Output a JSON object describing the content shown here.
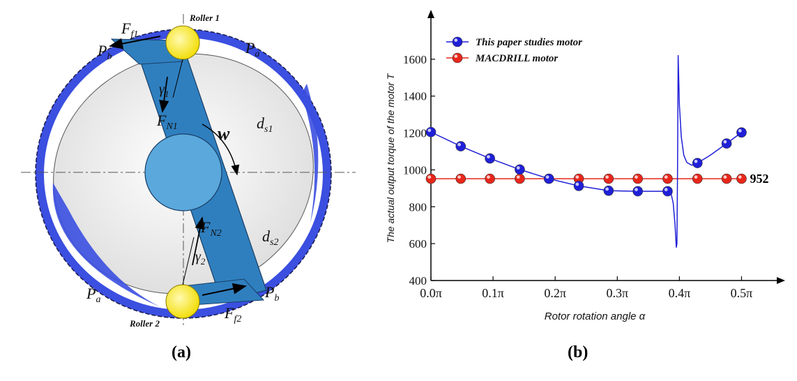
{
  "panel_a": {
    "caption": "(a)",
    "roller1_label": "Roller 1",
    "roller2_label": "Roller 2",
    "labels": {
      "Ff1": "F",
      "Ff1_sub": "f1",
      "Ff2": "F",
      "Ff2_sub": "f2",
      "FN1": "F",
      "FN1_sub": "N1",
      "FN2": "F",
      "FN2_sub": "N2",
      "gamma1": "γ",
      "gamma1_sub": "1",
      "gamma2": "γ",
      "gamma2_sub": "2",
      "w": "w",
      "ds1": "d",
      "ds1_sub": "s1",
      "ds2": "d",
      "ds2_sub": "s2",
      "Pa": "P",
      "Pa_sub": "a",
      "Pb": "P",
      "Pb_sub": "b"
    },
    "colors": {
      "blue_ring": "#3b4fe0",
      "vane_blue": "#2f7fbf",
      "hub_blue": "#5aa8dc",
      "roller_yellow": "#ffee1a",
      "chamber_gray": "#eeeeee"
    }
  },
  "panel_b": {
    "caption": "(b)"
  },
  "chart_data": {
    "type": "line",
    "title": "",
    "xlabel": "Rotor rotation angle α",
    "ylabel": "The actual output torque of the motor T",
    "xlim": [
      0,
      0.55
    ],
    "ylim": [
      400,
      1800
    ],
    "x_ticks": [
      0,
      0.1,
      0.2,
      0.3,
      0.4,
      0.5
    ],
    "x_tick_labels": [
      "0.0π",
      "0.1π",
      "0.2π",
      "0.3π",
      "0.4π",
      "0.5π"
    ],
    "y_ticks": [
      400,
      600,
      800,
      1000,
      1200,
      1400,
      1600
    ],
    "y_tick_labels": [
      "400",
      "600",
      "800",
      "1000",
      "1200",
      "1400",
      "1600"
    ],
    "legend_position": "top-left",
    "annotation": "952",
    "series": [
      {
        "name": "This paper studies motor",
        "color": "#1f1fd8",
        "marker_x": [
          0,
          0.048,
          0.095,
          0.143,
          0.19,
          0.238,
          0.286,
          0.333,
          0.381,
          0.429,
          0.476,
          0.5
        ],
        "marker_y": [
          1205,
          1128,
          1062,
          1002,
          952,
          913,
          887,
          884,
          884,
          1037,
          1143,
          1203
        ],
        "curve_x": [
          0,
          0.048,
          0.095,
          0.143,
          0.19,
          0.238,
          0.286,
          0.333,
          0.381,
          0.386,
          0.39,
          0.393,
          0.395,
          0.396,
          0.397,
          0.398,
          0.4,
          0.403,
          0.407,
          0.412,
          0.42,
          0.429,
          0.45,
          0.476,
          0.5
        ],
        "curve_y": [
          1205,
          1128,
          1062,
          1002,
          952,
          913,
          887,
          884,
          884,
          880,
          820,
          700,
          580,
          600,
          1000,
          1620,
          1350,
          1180,
          1080,
          1040,
          1025,
          1037,
          1080,
          1143,
          1203
        ]
      },
      {
        "name": "MACDRILL motor",
        "color": "#e8261a",
        "marker_x": [
          0,
          0.048,
          0.095,
          0.143,
          0.19,
          0.238,
          0.286,
          0.333,
          0.381,
          0.429,
          0.476,
          0.5
        ],
        "marker_y": [
          952,
          952,
          952,
          952,
          952,
          952,
          952,
          952,
          952,
          952,
          952,
          952
        ]
      }
    ]
  }
}
